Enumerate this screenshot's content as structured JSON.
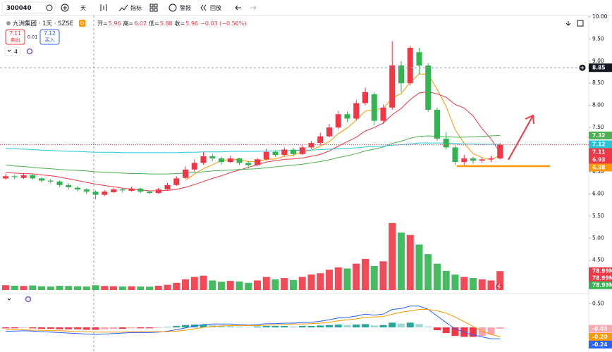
{
  "toolbar": {
    "symbol": "300040",
    "interval": "天",
    "indicators": "指标",
    "alerts": "警报",
    "replay": "回放"
  },
  "legend": {
    "name": "九洲集团 · 1天 · SZSE",
    "badge": "D",
    "ohlc": [
      {
        "label": "开=",
        "value": "5.96"
      },
      {
        "label": "高=",
        "value": "6.02"
      },
      {
        "label": "低=",
        "value": "5.88"
      },
      {
        "label": "收=",
        "value": "5.96"
      }
    ],
    "change": "−0.03 (−0.50%)",
    "sell_price": "7.11",
    "sell": "卖出",
    "spread": "0.01",
    "buy_price": "7.12",
    "buy": "买入",
    "indicator_count": "4"
  },
  "chart_data": {
    "type": "candlestick",
    "up_color": "#f23645",
    "down_color": "#32b450",
    "ylim": [
      3.78,
      10.03
    ],
    "yticks": [
      {
        "value": 10,
        "label": "10.00"
      },
      {
        "value": 9.5,
        "label": "9.50"
      },
      {
        "value": 9,
        "label": "9.00"
      },
      {
        "value": 8.5,
        "label": "8.50"
      },
      {
        "value": 8,
        "label": "8.00"
      },
      {
        "value": 7.5,
        "label": "7.50"
      },
      {
        "value": 7,
        "label": "7.00"
      },
      {
        "value": 6.5,
        "label": "6.50"
      },
      {
        "value": 6,
        "label": "6.00"
      },
      {
        "value": 5.5,
        "label": "5.50"
      },
      {
        "value": 5,
        "label": "5.00"
      },
      {
        "value": 4.5,
        "label": "4.50"
      }
    ],
    "crosshair_price": 8.85,
    "ohlc": [
      [
        6.35,
        6.45,
        6.32,
        6.4
      ],
      [
        6.4,
        6.44,
        6.33,
        6.38
      ],
      [
        6.36,
        6.46,
        6.34,
        6.42
      ],
      [
        6.42,
        6.44,
        6.32,
        6.35
      ],
      [
        6.35,
        6.38,
        6.26,
        6.3
      ],
      [
        6.3,
        6.34,
        6.24,
        6.28
      ],
      [
        6.28,
        6.3,
        6.16,
        6.2
      ],
      [
        6.2,
        6.24,
        6.1,
        6.15
      ],
      [
        6.14,
        6.18,
        6.05,
        6.1
      ],
      [
        6.1,
        6.13,
        6.0,
        6.05
      ],
      [
        6.05,
        6.08,
        5.88,
        5.98
      ],
      [
        5.98,
        6.09,
        5.95,
        6.05
      ],
      [
        6.04,
        6.14,
        6.02,
        6.1
      ],
      [
        6.1,
        6.13,
        6.03,
        6.08
      ],
      [
        6.07,
        6.16,
        6.05,
        6.12
      ],
      [
        6.12,
        6.14,
        6.02,
        6.05
      ],
      [
        6.05,
        6.08,
        5.99,
        6.02
      ],
      [
        6.02,
        6.14,
        6.0,
        6.1
      ],
      [
        6.1,
        6.25,
        6.08,
        6.2
      ],
      [
        6.2,
        6.4,
        6.18,
        6.35
      ],
      [
        6.36,
        6.62,
        6.34,
        6.55
      ],
      [
        6.55,
        6.78,
        6.5,
        6.7
      ],
      [
        6.7,
        6.95,
        6.66,
        6.85
      ],
      [
        6.85,
        6.9,
        6.74,
        6.8
      ],
      [
        6.8,
        6.84,
        6.66,
        6.72
      ],
      [
        6.72,
        6.86,
        6.7,
        6.8
      ],
      [
        6.8,
        6.82,
        6.65,
        6.7
      ],
      [
        6.7,
        6.74,
        6.58,
        6.65
      ],
      [
        6.65,
        6.82,
        6.62,
        6.78
      ],
      [
        6.78,
        7.02,
        6.75,
        6.95
      ],
      [
        6.95,
        6.98,
        6.84,
        6.88
      ],
      [
        6.88,
        7.05,
        6.85,
        7.0
      ],
      [
        7.0,
        7.04,
        6.85,
        6.9
      ],
      [
        6.9,
        7.1,
        6.88,
        7.05
      ],
      [
        7.05,
        7.2,
        7.02,
        7.15
      ],
      [
        7.15,
        7.38,
        7.1,
        7.3
      ],
      [
        7.3,
        7.58,
        7.28,
        7.5
      ],
      [
        7.5,
        7.88,
        7.46,
        7.8
      ],
      [
        7.8,
        7.86,
        7.62,
        7.7
      ],
      [
        7.7,
        8.12,
        7.66,
        8.05
      ],
      [
        8.05,
        8.4,
        8.0,
        8.3
      ],
      [
        8.25,
        8.3,
        7.55,
        7.65
      ],
      [
        7.65,
        8.02,
        7.58,
        7.95
      ],
      [
        7.95,
        9.45,
        7.9,
        8.9
      ],
      [
        8.9,
        9.0,
        8.3,
        8.5
      ],
      [
        8.5,
        9.35,
        8.45,
        9.3
      ],
      [
        9.2,
        9.3,
        8.7,
        8.9
      ],
      [
        8.9,
        8.95,
        7.85,
        7.9
      ],
      [
        7.9,
        7.95,
        7.2,
        7.25
      ],
      [
        7.25,
        7.4,
        7.0,
        7.05
      ],
      [
        7.05,
        7.1,
        6.65,
        6.72
      ],
      [
        6.72,
        6.88,
        6.65,
        6.8
      ],
      [
        6.8,
        6.84,
        6.68,
        6.75
      ],
      [
        6.75,
        6.82,
        6.7,
        6.78
      ],
      [
        6.78,
        6.86,
        6.72,
        6.8
      ],
      [
        6.8,
        7.15,
        6.78,
        7.11
      ]
    ],
    "series": [
      {
        "color": "#ff9800",
        "values": [
          null,
          null,
          null,
          null,
          null,
          null,
          null,
          null,
          null,
          null,
          null,
          null,
          null,
          null,
          null,
          null,
          null,
          null,
          null,
          null,
          6.3,
          6.45,
          6.57,
          6.66,
          6.75,
          6.78,
          6.77,
          6.73,
          6.73,
          6.78,
          6.79,
          6.85,
          6.88,
          6.95,
          6.99,
          7.08,
          7.18,
          7.36,
          7.49,
          7.67,
          7.87,
          7.9,
          7.93,
          8.17,
          8.27,
          8.52,
          8.71,
          8.7,
          8.36,
          7.97,
          7.45,
          7.14,
          6.91,
          6.82,
          6.77,
          6.88
        ]
      },
      {
        "color": "#f23645",
        "values": [
          6.48,
          6.47,
          6.46,
          6.45,
          6.43,
          6.41,
          6.38,
          6.34,
          6.3,
          6.26,
          6.22,
          6.19,
          6.16,
          6.13,
          6.11,
          6.09,
          6.07,
          6.07,
          6.08,
          6.1,
          6.15,
          6.21,
          6.28,
          6.35,
          6.41,
          6.48,
          6.54,
          6.6,
          6.66,
          6.72,
          6.75,
          6.78,
          6.79,
          6.81,
          6.85,
          6.89,
          6.97,
          7.08,
          7.18,
          7.28,
          7.42,
          7.5,
          7.6,
          7.79,
          7.93,
          8.13,
          8.28,
          8.31,
          8.26,
          8.18,
          8.02,
          7.94,
          7.76,
          7.47,
          7.24,
          6.93
        ]
      },
      {
        "color": "#4caf50",
        "values": [
          6.65,
          6.63,
          6.62,
          6.6,
          6.58,
          6.57,
          6.55,
          6.54,
          6.53,
          6.52,
          6.5,
          6.49,
          6.48,
          6.47,
          6.46,
          6.46,
          6.45,
          6.45,
          6.45,
          6.46,
          6.47,
          6.48,
          6.5,
          6.52,
          6.53,
          6.54,
          6.55,
          6.56,
          6.57,
          6.59,
          6.61,
          6.63,
          6.65,
          6.67,
          6.7,
          6.73,
          6.77,
          6.82,
          6.86,
          6.91,
          6.97,
          7.01,
          7.06,
          7.14,
          7.19,
          7.26,
          7.3,
          7.31,
          7.3,
          7.29,
          7.28,
          7.28,
          7.29,
          7.3,
          7.31,
          7.32
        ]
      },
      {
        "color": "#26c6da",
        "values": [
          7.03,
          7.02,
          7.01,
          7.0,
          6.99,
          6.98,
          6.97,
          6.96,
          6.96,
          6.95,
          6.94,
          6.94,
          6.94,
          6.93,
          6.93,
          6.93,
          6.93,
          6.93,
          6.93,
          6.93,
          6.94,
          6.94,
          6.95,
          6.95,
          6.95,
          6.96,
          6.96,
          6.96,
          6.96,
          6.97,
          6.97,
          6.98,
          6.98,
          6.99,
          6.99,
          7.0,
          7.01,
          7.02,
          7.03,
          7.04,
          7.06,
          7.07,
          7.08,
          7.1,
          7.11,
          7.13,
          7.15,
          7.15,
          7.15,
          7.15,
          7.14,
          7.13,
          7.13,
          7.12,
          7.12,
          7.12
        ]
      }
    ],
    "volume": {
      "ylim": [
        0,
        300
      ],
      "values": [
        20,
        18,
        17,
        19,
        16,
        15,
        18,
        17,
        16,
        15,
        20,
        17,
        16,
        15,
        16,
        15,
        14,
        18,
        22,
        30,
        45,
        55,
        60,
        40,
        35,
        38,
        36,
        30,
        40,
        55,
        45,
        50,
        42,
        55,
        65,
        70,
        85,
        95,
        90,
        110,
        130,
        100,
        120,
        280,
        240,
        230,
        190,
        150,
        110,
        80,
        65,
        55,
        50,
        45,
        40,
        78.99
      ],
      "tags": [
        {
          "value": 78.99,
          "label": "78.99M",
          "color": "#f23645"
        },
        {
          "value": 78.99,
          "label": "78.99M",
          "color": "#f23645"
        },
        {
          "value": 78.99,
          "label": "78.99M",
          "color": "#32b450"
        }
      ]
    },
    "macd": {
      "ylim": [
        -0.52,
        0.7
      ],
      "yticks": [
        {
          "value": 0.5,
          "label": "0.50"
        }
      ],
      "pos_color": "#26a69a",
      "neg_color": "#f23645",
      "dif_color": "#2962ff",
      "dea_color": "#ff9800",
      "hist": [
        -0.02,
        -0.02,
        -0.01,
        -0.02,
        -0.03,
        -0.03,
        -0.04,
        -0.04,
        -0.04,
        -0.05,
        -0.05,
        -0.04,
        -0.03,
        -0.03,
        -0.02,
        -0.02,
        -0.02,
        -0.01,
        0.01,
        0.03,
        0.05,
        0.06,
        0.06,
        0.05,
        0.04,
        0.03,
        0.02,
        0.01,
        0.02,
        0.03,
        0.03,
        0.03,
        0.02,
        0.03,
        0.03,
        0.04,
        0.05,
        0.06,
        0.05,
        0.06,
        0.07,
        0.04,
        0.05,
        0.1,
        0.08,
        0.1,
        0.07,
        0.02,
        -0.06,
        -0.12,
        -0.18,
        -0.2,
        -0.2,
        -0.18,
        -0.15,
        -0.03
      ],
      "dif": [
        -0.08,
        -0.08,
        -0.07,
        -0.08,
        -0.09,
        -0.1,
        -0.11,
        -0.12,
        -0.13,
        -0.14,
        -0.15,
        -0.14,
        -0.13,
        -0.12,
        -0.11,
        -0.11,
        -0.11,
        -0.1,
        -0.08,
        -0.05,
        -0.01,
        0.03,
        0.06,
        0.07,
        0.07,
        0.07,
        0.06,
        0.05,
        0.06,
        0.08,
        0.08,
        0.09,
        0.09,
        0.1,
        0.11,
        0.13,
        0.16,
        0.2,
        0.21,
        0.24,
        0.28,
        0.26,
        0.28,
        0.38,
        0.4,
        0.45,
        0.45,
        0.38,
        0.24,
        0.1,
        -0.03,
        -0.1,
        -0.16,
        -0.2,
        -0.24,
        -0.24
      ],
      "dea": [
        -0.04,
        -0.05,
        -0.05,
        -0.06,
        -0.06,
        -0.07,
        -0.07,
        -0.08,
        -0.09,
        -0.09,
        -0.1,
        -0.1,
        -0.1,
        -0.1,
        -0.09,
        -0.09,
        -0.09,
        -0.09,
        -0.09,
        -0.08,
        -0.06,
        -0.03,
        0.0,
        0.02,
        0.03,
        0.04,
        0.04,
        0.04,
        0.04,
        0.05,
        0.05,
        0.06,
        0.07,
        0.07,
        0.08,
        0.09,
        0.11,
        0.14,
        0.16,
        0.18,
        0.21,
        0.22,
        0.23,
        0.28,
        0.32,
        0.35,
        0.38,
        0.38,
        0.35,
        0.3,
        0.22,
        0.12,
        0.02,
        -0.08,
        -0.15,
        -0.2
      ],
      "tags": [
        {
          "value": -0.03,
          "label": "-0.03",
          "color": "#f7a9b0"
        },
        {
          "value": -0.2,
          "label": "-0.20",
          "color": "#ff9800"
        },
        {
          "value": -0.24,
          "label": "-0.24",
          "color": "#2962ff"
        }
      ]
    }
  }
}
